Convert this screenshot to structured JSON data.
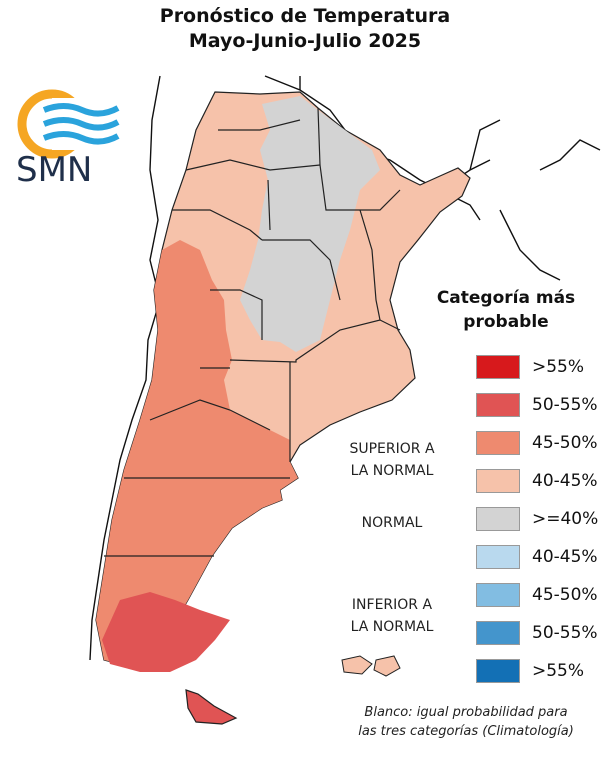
{
  "title": {
    "line1": "Pronóstico de Temperatura",
    "line2": "Mayo-Junio-Julio 2025"
  },
  "logo": {
    "text": "SMN",
    "icon": "smn-sun-waves-logo"
  },
  "legend": {
    "title_line1": "Categoría más",
    "title_line2": "probable",
    "items": [
      {
        "label": ">55%",
        "color": "#d7191c"
      },
      {
        "label": "50-55%",
        "color": "#e05454"
      },
      {
        "label": "45-50%",
        "color": "#ee8a6f"
      },
      {
        "label": "40-45%",
        "color": "#f6c2aa"
      },
      {
        "label": ">=40%",
        "color": "#d3d3d3"
      },
      {
        "label": "40-45%",
        "color": "#b9d9ee"
      },
      {
        "label": "45-50%",
        "color": "#82bde2"
      },
      {
        "label": "50-55%",
        "color": "#4495cc"
      },
      {
        "label": ">55%",
        "color": "#1370b5"
      }
    ]
  },
  "categories": {
    "superior_line1": "SUPERIOR A",
    "superior_line2": "LA NORMAL",
    "normal": "NORMAL",
    "inferior_line1": "INFERIOR A",
    "inferior_line2": "LA NORMAL"
  },
  "note": {
    "line1": "Blanco: igual probabilidad para",
    "line2": "las tres categorías (Climatología)"
  },
  "colors": {
    "light_orange": "#f6c2aa",
    "orange": "#ee8a6f",
    "red": "#e05454",
    "gray": "#d3d3d3",
    "logo_orange": "#f5a623",
    "logo_blue": "#2aa3dc"
  }
}
